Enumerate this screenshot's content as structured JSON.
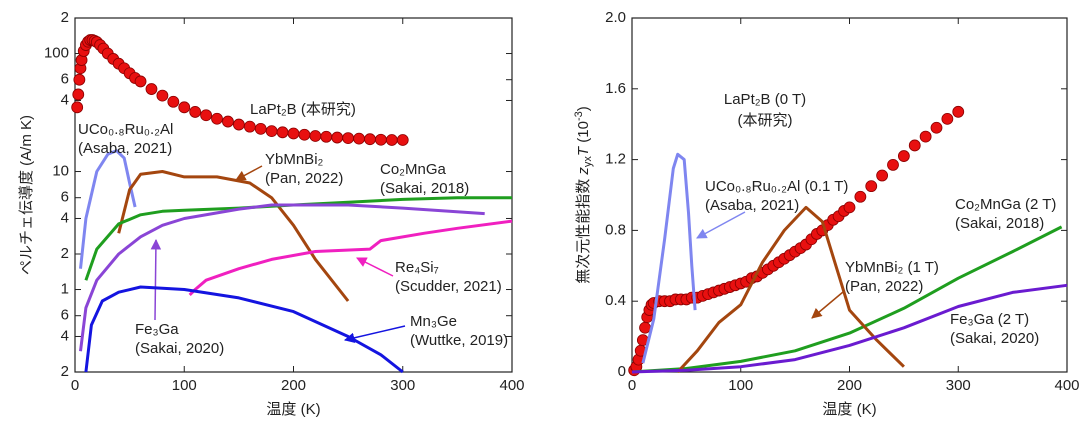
{
  "chart_data": [
    {
      "type": "line",
      "xlabel": "温度 (K)",
      "ylabel": "ペルチェ伝導度 (A/m K)",
      "yscale": "log",
      "xlim": [
        0,
        400
      ],
      "xticks": [
        0,
        100,
        200,
        300,
        400
      ],
      "ylim": [
        0.2,
        200
      ],
      "yticks": [
        {
          "value": 0.2,
          "label": "2"
        },
        {
          "value": 0.4,
          "label": "4"
        },
        {
          "value": 0.6,
          "label": "6"
        },
        1,
        2,
        4,
        6,
        10,
        {
          "value": 40,
          "label": "4"
        },
        {
          "value": 60,
          "label": "6"
        },
        100,
        {
          "value": 200,
          "label": "2"
        }
      ],
      "series": [
        {
          "name": "LaPt₂B (本研究)",
          "color": "#e81010",
          "marker": "circle",
          "x": [
            2,
            3,
            4,
            5,
            6,
            8,
            10,
            12,
            14,
            16,
            18,
            20,
            23,
            26,
            30,
            35,
            40,
            45,
            50,
            55,
            60,
            70,
            80,
            90,
            100,
            110,
            120,
            130,
            140,
            150,
            160,
            170,
            180,
            190,
            200,
            210,
            220,
            230,
            240,
            250,
            260,
            270,
            280,
            290,
            300
          ],
          "values": [
            35,
            45,
            60,
            75,
            88,
            105,
            118,
            126,
            130,
            130,
            128,
            125,
            118,
            110,
            100,
            90,
            82,
            75,
            68,
            62,
            58,
            50,
            44,
            39,
            35,
            32,
            30,
            28,
            26.5,
            25,
            24,
            23,
            22,
            21.5,
            21,
            20.5,
            20,
            19.7,
            19.4,
            19.2,
            19,
            18.8,
            18.6,
            18.5,
            18.5
          ]
        },
        {
          "name": "UCo₀.₈Ru₀.₂Al",
          "source": "(Asaba, 2021)",
          "color": "#7f86f0",
          "x": [
            5,
            10,
            20,
            30,
            38,
            45,
            50,
            55
          ],
          "values": [
            1.5,
            4,
            10,
            14,
            15,
            13,
            8,
            5
          ]
        },
        {
          "name": "YbMnBi₂",
          "source": "(Pan, 2022)",
          "color": "#a4460f",
          "x": [
            40,
            50,
            60,
            80,
            100,
            130,
            160,
            180,
            200,
            220,
            250
          ],
          "values": [
            3,
            7,
            9.5,
            10,
            9,
            9,
            8,
            6,
            3.5,
            1.8,
            0.8
          ]
        },
        {
          "name": "Co₂MnGa",
          "source": "(Sakai, 2018)",
          "color": "#1f9e1f",
          "x": [
            10,
            20,
            40,
            60,
            80,
            100,
            150,
            200,
            250,
            300,
            350,
            400
          ],
          "values": [
            1.2,
            2.2,
            3.6,
            4.3,
            4.6,
            4.7,
            4.9,
            5.2,
            5.5,
            5.8,
            6,
            6
          ]
        },
        {
          "name": "Fe₃Ga",
          "source": "(Sakai, 2020)",
          "color": "#8a45d6",
          "x": [
            5,
            10,
            20,
            40,
            60,
            80,
            100,
            150,
            180,
            250,
            300,
            375
          ],
          "values": [
            0.3,
            0.7,
            1.2,
            2,
            2.8,
            3.5,
            4,
            4.8,
            5.2,
            5.2,
            4.9,
            4.4
          ]
        },
        {
          "name": "Re₄Si₇",
          "source": "(Scudder, 2021)",
          "color": "#f020c0",
          "x": [
            105,
            110,
            120,
            150,
            180,
            220,
            270,
            280,
            320,
            350,
            400
          ],
          "values": [
            0.9,
            1,
            1.2,
            1.5,
            1.8,
            2.1,
            2.2,
            2.6,
            3,
            3.3,
            3.8
          ]
        },
        {
          "name": "Mn₃Ge",
          "source": "(Wuttke, 2019)",
          "color": "#1414e0",
          "x": [
            10,
            15,
            25,
            40,
            60,
            100,
            150,
            200,
            250,
            280,
            300
          ],
          "values": [
            0.2,
            0.5,
            0.8,
            0.95,
            1.05,
            1,
            0.85,
            0.65,
            0.4,
            0.28,
            0.2
          ]
        }
      ]
    },
    {
      "type": "line",
      "xlabel": "温度 (K)",
      "ylabel": [
        "無次元性能指数 ",
        "z",
        "yx",
        "T",
        " (10",
        "-3",
        ")"
      ],
      "xlim": [
        0,
        400
      ],
      "xticks": [
        0,
        100,
        200,
        300,
        400
      ],
      "ylim": [
        0,
        2
      ],
      "yticks": [
        0,
        0.4,
        0.8,
        1.2,
        1.6,
        {
          "value": 2,
          "label": "2.0"
        }
      ],
      "series": [
        {
          "name": "LaPt₂B (0 T)",
          "source": "(本研究)",
          "color": "#e81010",
          "marker": "circle",
          "x": [
            2,
            4,
            6,
            8,
            10,
            12,
            14,
            16,
            18,
            20,
            25,
            30,
            35,
            40,
            45,
            50,
            55,
            60,
            65,
            70,
            75,
            80,
            85,
            90,
            95,
            100,
            105,
            110,
            115,
            120,
            125,
            130,
            135,
            140,
            145,
            150,
            155,
            160,
            165,
            170,
            175,
            180,
            185,
            190,
            195,
            200,
            210,
            220,
            230,
            240,
            250,
            260,
            270,
            280,
            290,
            300
          ],
          "values": [
            0.01,
            0.03,
            0.07,
            0.12,
            0.18,
            0.25,
            0.31,
            0.35,
            0.38,
            0.39,
            0.4,
            0.4,
            0.4,
            0.41,
            0.41,
            0.41,
            0.42,
            0.42,
            0.43,
            0.44,
            0.45,
            0.46,
            0.47,
            0.48,
            0.49,
            0.5,
            0.51,
            0.53,
            0.54,
            0.56,
            0.58,
            0.6,
            0.62,
            0.64,
            0.66,
            0.68,
            0.7,
            0.72,
            0.75,
            0.78,
            0.8,
            0.83,
            0.86,
            0.88,
            0.91,
            0.93,
            0.99,
            1.05,
            1.11,
            1.17,
            1.22,
            1.28,
            1.33,
            1.38,
            1.43,
            1.47
          ]
        },
        {
          "name": "UCo₀.₈Ru₀.₂Al (0.1 T)",
          "source": "(Asaba, 2021)",
          "color": "#7f86f0",
          "x": [
            10,
            20,
            30,
            38,
            42,
            48,
            52,
            55,
            58
          ],
          "values": [
            0.05,
            0.3,
            0.75,
            1.15,
            1.23,
            1.2,
            0.9,
            0.6,
            0.35
          ]
        },
        {
          "name": "Co₂MnGa (2 T)",
          "source": "(Sakai, 2018)",
          "color": "#1f9e1f",
          "x": [
            0,
            50,
            100,
            150,
            200,
            250,
            300,
            350,
            395
          ],
          "values": [
            0,
            0.02,
            0.06,
            0.12,
            0.22,
            0.36,
            0.53,
            0.68,
            0.82
          ]
        },
        {
          "name": "YbMnBi₂ (1 T)",
          "source": "(Pan, 2022)",
          "color": "#a4460f",
          "x": [
            42,
            60,
            80,
            100,
            120,
            140,
            160,
            175,
            190,
            200,
            225,
            250
          ],
          "values": [
            0,
            0.12,
            0.28,
            0.38,
            0.62,
            0.8,
            0.93,
            0.85,
            0.55,
            0.35,
            0.18,
            0.03
          ]
        },
        {
          "name": "Fe₃Ga (2 T)",
          "source": "(Sakai, 2020)",
          "color": "#6a1bd0",
          "x": [
            0,
            50,
            100,
            150,
            200,
            250,
            300,
            350,
            400
          ],
          "values": [
            0,
            0.01,
            0.03,
            0.07,
            0.15,
            0.25,
            0.37,
            0.45,
            0.49
          ]
        }
      ]
    }
  ]
}
